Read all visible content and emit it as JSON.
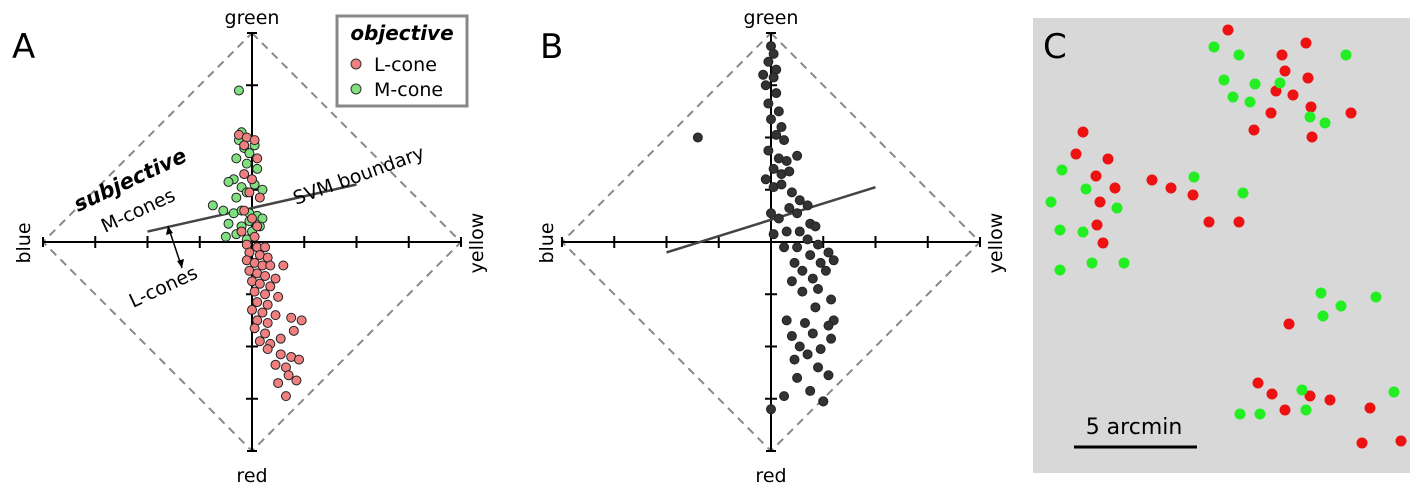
{
  "chart_data": [
    {
      "type": "scatter",
      "panel_label": "A",
      "axis_labels": {
        "top": "green",
        "bottom": "red",
        "left": "blue",
        "right": "yellow"
      },
      "xlim": [
        -4,
        4
      ],
      "ylim": [
        -4,
        4
      ],
      "legend": {
        "title": "objective",
        "placement": "top-right",
        "items": [
          {
            "name": "L-cone",
            "color": "#f08080"
          },
          {
            "name": "M-cone",
            "color": "#80e080"
          }
        ]
      },
      "annotations": {
        "subjective": "subjective",
        "m_cones": "M-cones",
        "l_cones": "L-cones",
        "svm": "SVM boundary"
      },
      "svm_line": [
        [
          -2,
          0.2
        ],
        [
          2,
          1.1
        ]
      ],
      "series": [
        {
          "name": "M-cone",
          "color": "#80e080",
          "points": [
            [
              -0.25,
              2.9
            ],
            [
              -0.2,
              2.1
            ],
            [
              -0.25,
              1.95
            ],
            [
              -0.15,
              1.8
            ],
            [
              -0.05,
              1.7
            ],
            [
              0.05,
              1.85
            ],
            [
              -0.3,
              1.6
            ],
            [
              -0.1,
              1.5
            ],
            [
              0.1,
              1.4
            ],
            [
              -0.35,
              1.2
            ],
            [
              -0.45,
              1.15
            ],
            [
              -0.2,
              1.05
            ],
            [
              0.05,
              1.1
            ],
            [
              0.2,
              1.0
            ],
            [
              -0.1,
              0.95
            ],
            [
              -0.3,
              0.85
            ],
            [
              -0.75,
              0.7
            ],
            [
              -0.55,
              0.6
            ],
            [
              -0.35,
              0.55
            ],
            [
              -0.2,
              0.6
            ],
            [
              -0.05,
              0.55
            ],
            [
              0.1,
              0.5
            ],
            [
              0.2,
              0.45
            ],
            [
              -0.45,
              0.35
            ],
            [
              -0.2,
              0.3
            ],
            [
              -0.05,
              0.4
            ],
            [
              0.15,
              0.3
            ],
            [
              -0.5,
              0.1
            ],
            [
              -0.3,
              0.15
            ],
            [
              0.0,
              0.2
            ],
            [
              -0.1,
              0.05
            ]
          ]
        },
        {
          "name": "L-cone",
          "color": "#f08080",
          "points": [
            [
              -0.25,
              2.05
            ],
            [
              -0.1,
              2.0
            ],
            [
              0.05,
              1.95
            ],
            [
              -0.15,
              1.85
            ],
            [
              0.1,
              1.6
            ],
            [
              -0.15,
              1.3
            ],
            [
              0.0,
              1.2
            ],
            [
              -0.05,
              0.95
            ],
            [
              0.15,
              0.85
            ],
            [
              -0.15,
              0.6
            ],
            [
              0.0,
              0.45
            ],
            [
              0.1,
              0.3
            ],
            [
              -0.2,
              0.2
            ],
            [
              0.05,
              0.1
            ],
            [
              -0.1,
              -0.05
            ],
            [
              0.1,
              -0.1
            ],
            [
              0.25,
              -0.1
            ],
            [
              -0.05,
              -0.2
            ],
            [
              0.15,
              -0.25
            ],
            [
              0.3,
              -0.3
            ],
            [
              -0.1,
              -0.35
            ],
            [
              0.05,
              -0.4
            ],
            [
              0.2,
              -0.45
            ],
            [
              0.35,
              -0.45
            ],
            [
              0.6,
              -0.45
            ],
            [
              -0.05,
              -0.55
            ],
            [
              0.1,
              -0.6
            ],
            [
              0.25,
              -0.65
            ],
            [
              0.45,
              -0.7
            ],
            [
              0.0,
              -0.75
            ],
            [
              0.15,
              -0.8
            ],
            [
              0.35,
              -0.85
            ],
            [
              0.05,
              -0.95
            ],
            [
              0.25,
              -1.0
            ],
            [
              0.5,
              -1.05
            ],
            [
              0.1,
              -1.15
            ],
            [
              0.3,
              -1.2
            ],
            [
              0.0,
              -1.3
            ],
            [
              0.2,
              -1.35
            ],
            [
              0.45,
              -1.4
            ],
            [
              0.1,
              -1.5
            ],
            [
              0.3,
              -1.55
            ],
            [
              0.05,
              -1.65
            ],
            [
              0.25,
              -1.75
            ],
            [
              0.55,
              -1.85
            ],
            [
              0.15,
              -1.9
            ],
            [
              0.35,
              -1.95
            ],
            [
              0.75,
              -1.45
            ],
            [
              0.95,
              -1.5
            ],
            [
              0.8,
              -1.7
            ],
            [
              0.3,
              -2.05
            ],
            [
              0.55,
              -2.15
            ],
            [
              0.75,
              -2.2
            ],
            [
              0.45,
              -2.35
            ],
            [
              0.65,
              -2.4
            ],
            [
              0.9,
              -2.25
            ],
            [
              0.7,
              -2.55
            ],
            [
              0.85,
              -2.65
            ],
            [
              0.5,
              -2.7
            ],
            [
              0.65,
              -2.95
            ]
          ]
        }
      ]
    },
    {
      "type": "scatter",
      "panel_label": "B",
      "axis_labels": {
        "top": "green",
        "bottom": "red",
        "left": "blue",
        "right": "yellow"
      },
      "xlim": [
        -4,
        4
      ],
      "ylim": [
        -4,
        4
      ],
      "svm_line": [
        [
          -2,
          -0.2
        ],
        [
          2,
          1.05
        ]
      ],
      "series": [
        {
          "name": "",
          "color": "#333333",
          "points": [
            [
              0.0,
              3.75
            ],
            [
              0.05,
              3.6
            ],
            [
              -0.05,
              3.45
            ],
            [
              0.1,
              3.3
            ],
            [
              -0.15,
              3.2
            ],
            [
              0.05,
              3.15
            ],
            [
              -0.1,
              3.0
            ],
            [
              0.1,
              2.85
            ],
            [
              -0.05,
              2.65
            ],
            [
              0.15,
              2.5
            ],
            [
              0.0,
              2.35
            ],
            [
              0.2,
              2.2
            ],
            [
              0.1,
              2.05
            ],
            [
              0.25,
              1.95
            ],
            [
              -1.4,
              2.0
            ],
            [
              -0.05,
              1.75
            ],
            [
              0.15,
              1.6
            ],
            [
              0.3,
              1.55
            ],
            [
              0.5,
              1.65
            ],
            [
              0.05,
              1.4
            ],
            [
              0.2,
              1.3
            ],
            [
              0.35,
              1.35
            ],
            [
              -0.1,
              1.2
            ],
            [
              0.05,
              1.05
            ],
            [
              0.2,
              1.1
            ],
            [
              0.4,
              0.95
            ],
            [
              0.55,
              0.8
            ],
            [
              0.7,
              0.7
            ],
            [
              0.35,
              0.65
            ],
            [
              0.5,
              0.55
            ],
            [
              0.0,
              0.55
            ],
            [
              0.15,
              0.45
            ],
            [
              0.75,
              0.35
            ],
            [
              0.85,
              0.3
            ],
            [
              0.55,
              0.2
            ],
            [
              0.3,
              0.2
            ],
            [
              0.05,
              0.15
            ],
            [
              0.7,
              0.05
            ],
            [
              0.9,
              -0.05
            ],
            [
              0.5,
              -0.1
            ],
            [
              0.25,
              -0.1
            ],
            [
              1.1,
              -0.2
            ],
            [
              0.75,
              -0.25
            ],
            [
              0.45,
              -0.4
            ],
            [
              0.95,
              -0.4
            ],
            [
              1.2,
              -0.35
            ],
            [
              0.6,
              -0.55
            ],
            [
              1.05,
              -0.55
            ],
            [
              0.8,
              -0.7
            ],
            [
              0.4,
              -0.75
            ],
            [
              0.9,
              -0.9
            ],
            [
              0.6,
              -0.95
            ],
            [
              1.15,
              -1.1
            ],
            [
              0.85,
              -1.25
            ],
            [
              0.3,
              -1.5
            ],
            [
              1.2,
              -1.5
            ],
            [
              0.65,
              -1.55
            ],
            [
              0.8,
              -1.75
            ],
            [
              0.4,
              -1.8
            ],
            [
              1.1,
              -1.6
            ],
            [
              0.55,
              -2.0
            ],
            [
              0.95,
              -2.05
            ],
            [
              1.15,
              -1.85
            ],
            [
              0.7,
              -2.15
            ],
            [
              0.45,
              -2.25
            ],
            [
              0.9,
              -2.4
            ],
            [
              1.1,
              -2.55
            ],
            [
              0.5,
              -2.6
            ],
            [
              0.25,
              -2.95
            ],
            [
              0.75,
              -2.85
            ],
            [
              1.0,
              -3.05
            ],
            [
              0.0,
              -3.2
            ],
            [
              1.0,
              -3.05
            ]
          ]
        }
      ]
    },
    {
      "type": "scatter",
      "panel_label": "C",
      "scale_bar_label": "5 arcmin",
      "background": "#d8d8d8",
      "series": [
        {
          "name": "",
          "color": "#ee1111",
          "points": [
            [
              1228,
              30
            ],
            [
              1306,
              43
            ],
            [
              1282,
              55
            ],
            [
              1285,
              71
            ],
            [
              1308,
              78
            ],
            [
              1276,
              91
            ],
            [
              1293,
              95
            ],
            [
              1271,
              113
            ],
            [
              1311,
              107
            ],
            [
              1351,
              113
            ],
            [
              1254,
              130
            ],
            [
              1312,
              137
            ],
            [
              1083,
              132
            ],
            [
              1076,
              154
            ],
            [
              1108,
              159
            ],
            [
              1096,
              176
            ],
            [
              1115,
              188
            ],
            [
              1152,
              180
            ],
            [
              1171,
              188
            ],
            [
              1193,
              195
            ],
            [
              1100,
              202
            ],
            [
              1097,
              225
            ],
            [
              1209,
              222
            ],
            [
              1239,
              222
            ],
            [
              1103,
              243
            ],
            [
              1289,
              324
            ],
            [
              1258,
              383
            ],
            [
              1272,
              394
            ],
            [
              1285,
              410
            ],
            [
              1310,
              396
            ],
            [
              1330,
              400
            ],
            [
              1370,
              408
            ],
            [
              1362,
              443
            ],
            [
              1401,
              441
            ]
          ]
        },
        {
          "name": "",
          "color": "#22ee22",
          "points": [
            [
              1214,
              47
            ],
            [
              1239,
              55
            ],
            [
              1346,
              55
            ],
            [
              1224,
              80
            ],
            [
              1255,
              84
            ],
            [
              1280,
              83
            ],
            [
              1233,
              97
            ],
            [
              1250,
              102
            ],
            [
              1310,
              117
            ],
            [
              1325,
              123
            ],
            [
              1062,
              170
            ],
            [
              1086,
              189
            ],
            [
              1194,
              177
            ],
            [
              1243,
              193
            ],
            [
              1051,
              202
            ],
            [
              1117,
              208
            ],
            [
              1060,
              230
            ],
            [
              1083,
              232
            ],
            [
              1060,
              270
            ],
            [
              1092,
              263
            ],
            [
              1124,
              263
            ],
            [
              1321,
              293
            ],
            [
              1341,
              306
            ],
            [
              1376,
              297
            ],
            [
              1323,
              316
            ],
            [
              1302,
              390
            ],
            [
              1394,
              392
            ],
            [
              1240,
              414
            ],
            [
              1260,
              414
            ],
            [
              1306,
              410
            ]
          ]
        }
      ]
    }
  ]
}
